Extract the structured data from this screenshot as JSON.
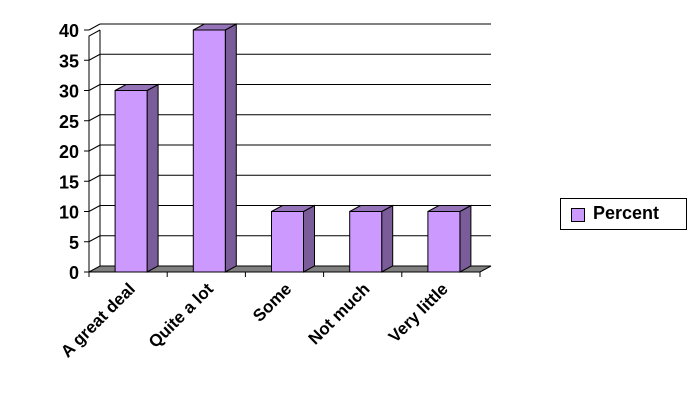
{
  "chart_data": {
    "type": "bar",
    "categories": [
      "A great deal",
      "Quite a lot",
      "Some",
      "Not much",
      "Very little"
    ],
    "series": [
      {
        "name": "Percent",
        "values": [
          30,
          40,
          10,
          10,
          10
        ],
        "color": "#cc99ff"
      }
    ],
    "ylim": [
      0,
      40
    ],
    "yticks": [
      "0",
      "5",
      "10",
      "15",
      "20",
      "25",
      "30",
      "35",
      "40"
    ],
    "grid": true,
    "legend": "right",
    "colors": {
      "bar_front": "#cc99ff",
      "bar_side": "#7a5c99",
      "bar_top": "#9473b8",
      "floor": "#808080"
    }
  }
}
